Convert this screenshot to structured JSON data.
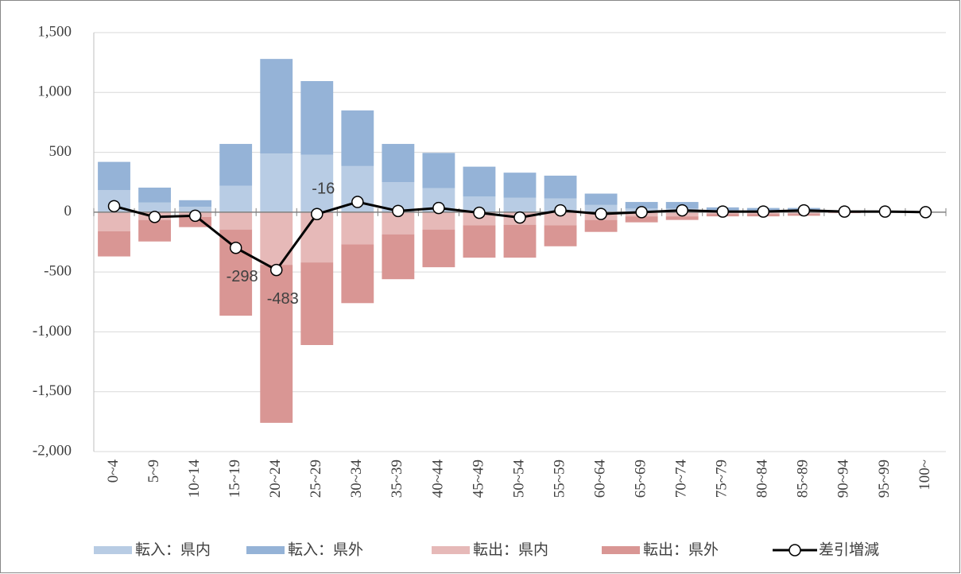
{
  "chart_data": {
    "type": "bar",
    "categories": [
      "0~4",
      "5~9",
      "10~14",
      "15~19",
      "20~24",
      "25~29",
      "30~34",
      "35~39",
      "40~44",
      "45~49",
      "50~54",
      "55~59",
      "60~64",
      "65~69",
      "70~74",
      "75~79",
      "80~84",
      "85~89",
      "90~94",
      "95~99",
      "100~"
    ],
    "series": [
      {
        "name": "転入：県内",
        "color": "#b8cce4",
        "values": [
          185,
          80,
          45,
          220,
          490,
          480,
          385,
          250,
          200,
          130,
          120,
          115,
          60,
          30,
          30,
          15,
          15,
          15,
          3,
          2,
          0
        ]
      },
      {
        "name": "転入：県外",
        "color": "#95b3d7",
        "values": [
          235,
          125,
          55,
          350,
          790,
          615,
          465,
          320,
          295,
          250,
          210,
          190,
          95,
          55,
          55,
          25,
          20,
          20,
          7,
          3,
          0
        ]
      },
      {
        "name": "転出：県内",
        "color": "#e6b9b8",
        "values": [
          -160,
          -65,
          -40,
          -145,
          -440,
          -420,
          -270,
          -185,
          -145,
          -110,
          -105,
          -110,
          -65,
          -35,
          -35,
          -15,
          -15,
          -15,
          -3,
          -2,
          0
        ]
      },
      {
        "name": "転出：県外",
        "color": "#d99694",
        "values": [
          -210,
          -180,
          -85,
          -720,
          -1320,
          -690,
          -490,
          -375,
          -315,
          -270,
          -275,
          -175,
          -100,
          -50,
          -30,
          -20,
          -20,
          -15,
          -5,
          -2,
          0
        ]
      },
      {
        "name": "差引増減",
        "type": "line",
        "color": "#000000",
        "values": [
          50,
          -40,
          -30,
          -298,
          -483,
          -16,
          85,
          10,
          35,
          -5,
          -45,
          15,
          -15,
          0,
          15,
          5,
          5,
          15,
          5,
          5,
          0
        ],
        "value_labels": [
          null,
          null,
          null,
          "-298",
          "-483",
          "-16",
          null,
          null,
          null,
          null,
          null,
          null,
          null,
          null,
          null,
          null,
          null,
          null,
          null,
          null,
          null
        ]
      }
    ],
    "ylim": [
      -2000,
      1500
    ],
    "yticks": [
      {
        "value": -2000,
        "label": "-2,000"
      },
      {
        "value": -1500,
        "label": "-1,500"
      },
      {
        "value": -1000,
        "label": "-1,000"
      },
      {
        "value": -500,
        "label": "-500"
      },
      0,
      500,
      {
        "value": 1000,
        "label": "1,000"
      },
      {
        "value": 1500,
        "label": "1,500"
      }
    ],
    "grid": true,
    "legend": "bottom"
  }
}
